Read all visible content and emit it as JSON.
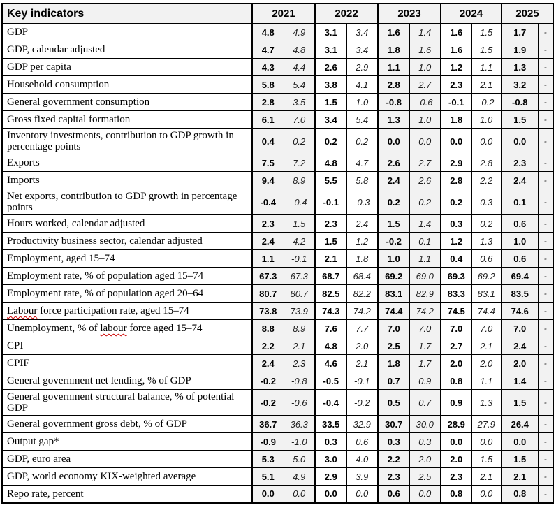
{
  "header": {
    "label": "Key indicators",
    "years": [
      "2021",
      "2022",
      "2023",
      "2024",
      "2025"
    ]
  },
  "dash": "-",
  "colors": {
    "shade": "#f2f2f2",
    "border": "#000000",
    "spellcheck_underline": "#cc0000"
  },
  "rows": [
    {
      "label": "GDP",
      "values": [
        "4.8",
        "4.9",
        "3.1",
        "3.4",
        "1.6",
        "1.4",
        "1.6",
        "1.5",
        "1.7"
      ]
    },
    {
      "label": "GDP, calendar adjusted",
      "values": [
        "4.7",
        "4.8",
        "3.1",
        "3.4",
        "1.8",
        "1.6",
        "1.6",
        "1.5",
        "1.9"
      ]
    },
    {
      "label": "GDP per capita",
      "values": [
        "4.3",
        "4.4",
        "2.6",
        "2.9",
        "1.1",
        "1.0",
        "1.2",
        "1.1",
        "1.3"
      ]
    },
    {
      "label": "Household consumption",
      "values": [
        "5.8",
        "5.4",
        "3.8",
        "4.1",
        "2.8",
        "2.7",
        "2.3",
        "2.1",
        "3.2"
      ]
    },
    {
      "label": "General government consumption",
      "values": [
        "2.8",
        "3.5",
        "1.5",
        "1.0",
        "-0.8",
        "-0.6",
        "-0.1",
        "-0.2",
        "-0.8"
      ]
    },
    {
      "label": "Gross fixed capital formation",
      "values": [
        "6.1",
        "7.0",
        "3.4",
        "5.4",
        "1.3",
        "1.0",
        "1.8",
        "1.0",
        "1.5"
      ]
    },
    {
      "label": "Inventory investments, contribution to GDP growth in percentage points",
      "values": [
        "0.4",
        "0.2",
        "0.2",
        "0.2",
        "0.0",
        "0.0",
        "0.0",
        "0.0",
        "0.0"
      ]
    },
    {
      "label": "Exports",
      "values": [
        "7.5",
        "7.2",
        "4.8",
        "4.7",
        "2.6",
        "2.7",
        "2.9",
        "2.8",
        "2.3"
      ]
    },
    {
      "label": "Imports",
      "values": [
        "9.4",
        "8.9",
        "5.5",
        "5.8",
        "2.4",
        "2.6",
        "2.8",
        "2.2",
        "2.4"
      ]
    },
    {
      "label": "Net exports, contribution to GDP growth in percentage points",
      "values": [
        "-0.4",
        "-0.4",
        "-0.1",
        "-0.3",
        "0.2",
        "0.2",
        "0.2",
        "0.3",
        "0.1"
      ]
    },
    {
      "label": "Hours worked, calendar adjusted",
      "values": [
        "2.3",
        "1.5",
        "2.3",
        "2.4",
        "1.5",
        "1.4",
        "0.3",
        "0.2",
        "0.6"
      ]
    },
    {
      "label": "Productivity business sector, calendar adjusted",
      "values": [
        "2.4",
        "4.2",
        "1.5",
        "1.2",
        "-0.2",
        "0.1",
        "1.2",
        "1.3",
        "1.0"
      ]
    },
    {
      "label": "Employment, aged 15–74",
      "values": [
        "1.1",
        "-0.1",
        "2.1",
        "1.8",
        "1.0",
        "1.1",
        "0.4",
        "0.6",
        "0.6"
      ]
    },
    {
      "label": "Employment rate, % of population aged 15–74",
      "values": [
        "67.3",
        "67.3",
        "68.7",
        "68.4",
        "69.2",
        "69.0",
        "69.3",
        "69.2",
        "69.4"
      ]
    },
    {
      "label": "Employment rate, % of population aged 20–64",
      "values": [
        "80.7",
        "80.7",
        "82.5",
        "82.2",
        "83.1",
        "82.9",
        "83.3",
        "83.1",
        "83.5"
      ]
    },
    {
      "label": "Labour force participation rate, aged 15–74",
      "misspelled": [
        "Labour"
      ],
      "values": [
        "73.8",
        "73.9",
        "74.3",
        "74.2",
        "74.4",
        "74.2",
        "74.5",
        "74.4",
        "74.6"
      ]
    },
    {
      "label": "Unemployment, % of labour force aged 15–74",
      "misspelled": [
        "labour"
      ],
      "values": [
        "8.8",
        "8.9",
        "7.6",
        "7.7",
        "7.0",
        "7.0",
        "7.0",
        "7.0",
        "7.0"
      ]
    },
    {
      "label": "CPI",
      "values": [
        "2.2",
        "2.1",
        "4.8",
        "2.0",
        "2.5",
        "1.7",
        "2.7",
        "2.1",
        "2.4"
      ]
    },
    {
      "label": "CPIF",
      "values": [
        "2.4",
        "2.3",
        "4.6",
        "2.1",
        "1.8",
        "1.7",
        "2.0",
        "2.0",
        "2.0"
      ]
    },
    {
      "label": "General government net lending, % of GDP",
      "values": [
        "-0.2",
        "-0.8",
        "-0.5",
        "-0.1",
        "0.7",
        "0.9",
        "0.8",
        "1.1",
        "1.4"
      ]
    },
    {
      "label": "General government structural balance, % of potential GDP",
      "values": [
        "-0.2",
        "-0.6",
        "-0.4",
        "-0.2",
        "0.5",
        "0.7",
        "0.9",
        "1.3",
        "1.5"
      ]
    },
    {
      "label": "General government gross debt, % of GDP",
      "values": [
        "36.7",
        "36.3",
        "33.5",
        "32.9",
        "30.7",
        "30.0",
        "28.9",
        "27.9",
        "26.4"
      ]
    },
    {
      "label": "Output gap*",
      "values": [
        "-0.9",
        "-1.0",
        "0.3",
        "0.6",
        "0.3",
        "0.3",
        "0.0",
        "0.0",
        "0.0"
      ]
    },
    {
      "label": "GDP, euro area",
      "values": [
        "5.3",
        "5.0",
        "3.0",
        "4.0",
        "2.2",
        "2.0",
        "2.0",
        "1.5",
        "1.5"
      ]
    },
    {
      "label": "GDP, world economy KIX-weighted average",
      "values": [
        "5.1",
        "4.9",
        "2.9",
        "3.9",
        "2.3",
        "2.5",
        "2.3",
        "2.1",
        "2.1"
      ]
    },
    {
      "label": "Repo rate, percent",
      "values": [
        "0.0",
        "0.0",
        "0.0",
        "0.0",
        "0.6",
        "0.0",
        "0.8",
        "0.0",
        "0.8"
      ]
    }
  ]
}
